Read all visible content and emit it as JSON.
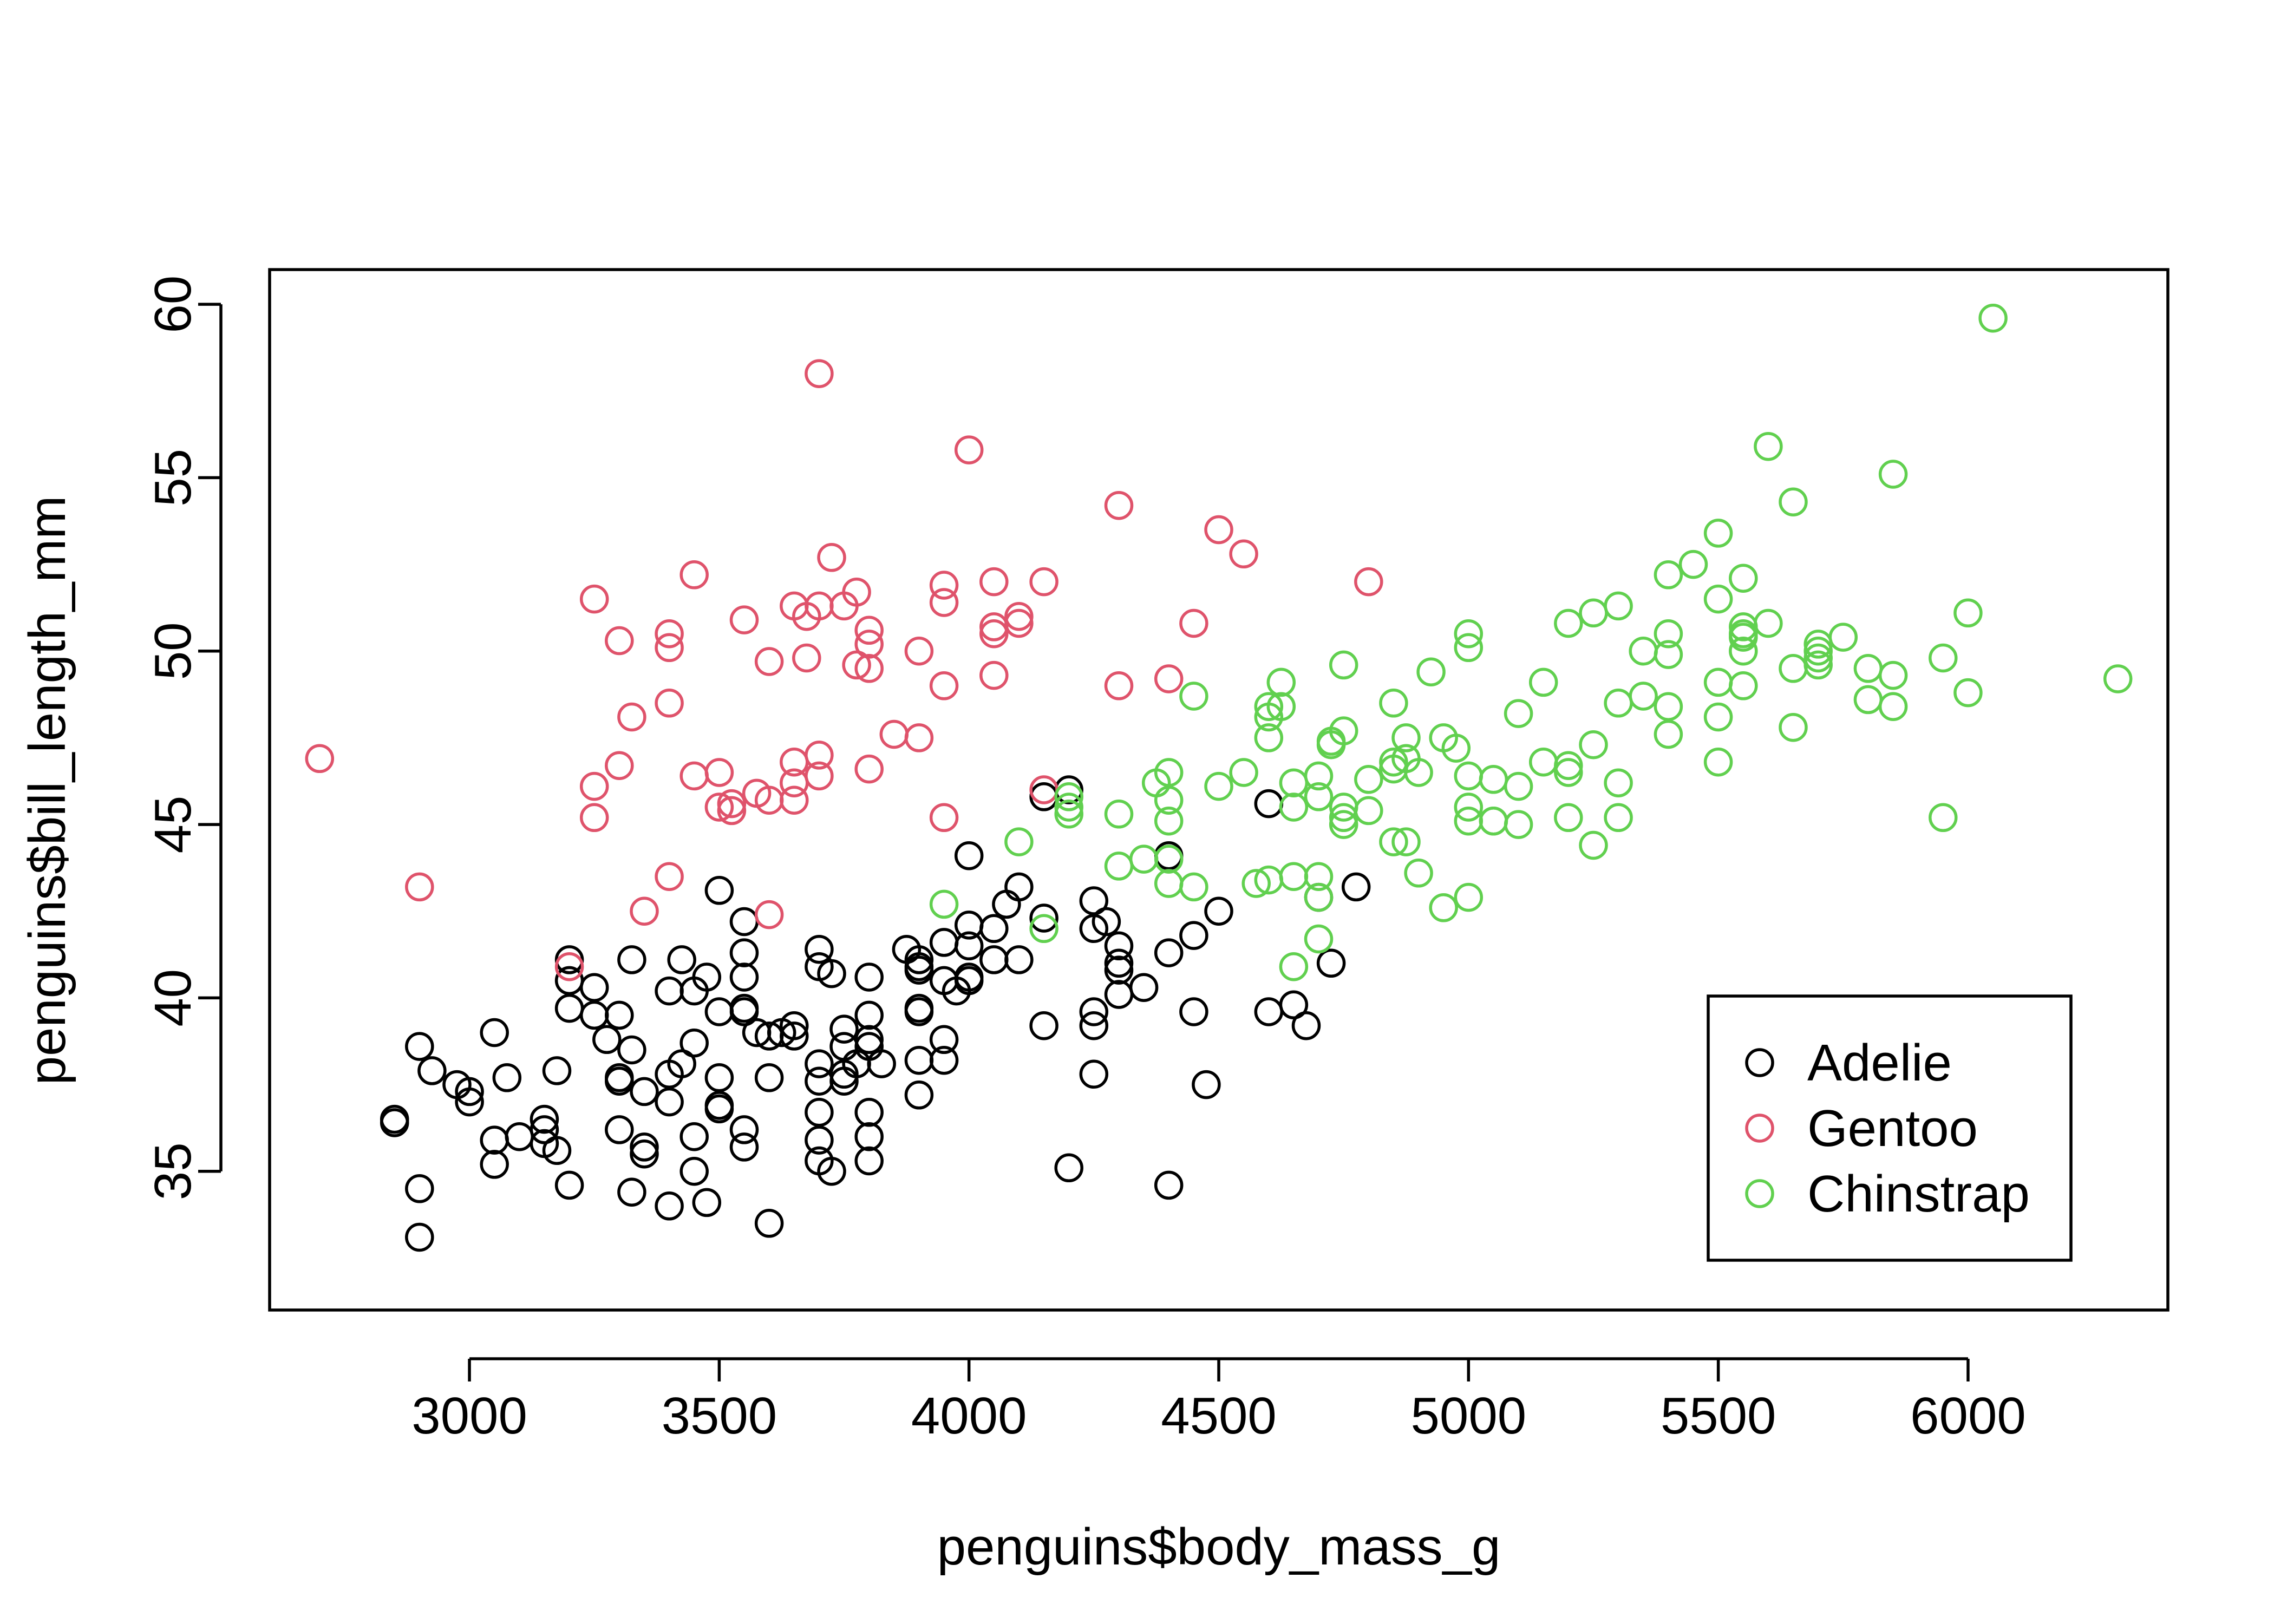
{
  "chart_data": {
    "type": "scatter",
    "title": "",
    "xlabel": "penguins$body_mass_g",
    "ylabel": "penguins$bill_length_mm",
    "xlim": [
      2600,
      6400
    ],
    "ylim": [
      31,
      61
    ],
    "xticks": [
      "3000",
      "3500",
      "4000",
      "4500",
      "5000",
      "5500",
      "6000"
    ],
    "yticks": [
      "35",
      "40",
      "45",
      "50",
      "55",
      "60"
    ],
    "grid": false,
    "legend_position": "bottom-right",
    "legend": [
      "Adelie",
      "Gentoo",
      "Chinstrap"
    ],
    "colors": {
      "Adelie": "#000000",
      "Gentoo": "#DF536B",
      "Chinstrap": "#61D04F"
    },
    "marker": "open-circle",
    "series": [
      {
        "name": "Adelie",
        "color": "#000000",
        "x": [
          2850,
          2850,
          2900,
          2900,
          2900,
          2925,
          2975,
          3000,
          3000,
          3050,
          3050,
          3050,
          3075,
          3100,
          3150,
          3150,
          3150,
          3175,
          3175,
          3200,
          3200,
          3200,
          3200,
          3250,
          3250,
          3275,
          3300,
          3300,
          3300,
          3300,
          3325,
          3325,
          3325,
          3350,
          3350,
          3350,
          3400,
          3400,
          3400,
          3400,
          3425,
          3425,
          3450,
          3450,
          3450,
          3450,
          3475,
          3475,
          3500,
          3500,
          3500,
          3500,
          3500,
          3550,
          3550,
          3550,
          3550,
          3550,
          3550,
          3550,
          3575,
          3600,
          3600,
          3600,
          3625,
          3650,
          3650,
          3700,
          3700,
          3700,
          3700,
          3700,
          3700,
          3700,
          3725,
          3725,
          3750,
          3750,
          3750,
          3750,
          3775,
          3800,
          3800,
          3800,
          3800,
          3800,
          3800,
          3800,
          3825,
          3875,
          3900,
          3900,
          3900,
          3900,
          3900,
          3900,
          3900,
          3950,
          3950,
          3950,
          3950,
          3975,
          4000,
          4000,
          4000,
          4000,
          4000,
          4050,
          4050,
          4075,
          4100,
          4100,
          4150,
          4150,
          4150,
          4200,
          4200,
          4250,
          4250,
          4250,
          4250,
          4250,
          4275,
          4300,
          4300,
          4300,
          4300,
          4350,
          4400,
          4400,
          4400,
          4450,
          4450,
          4475,
          4500,
          4600,
          4600,
          4650,
          4675,
          4700,
          4725,
          4775
        ],
        "y": [
          36.5,
          36.4,
          38.6,
          34.5,
          33.1,
          37.9,
          37.5,
          37.3,
          37.0,
          39.0,
          35.9,
          35.2,
          37.7,
          36.0,
          36.5,
          36.2,
          35.8,
          37.9,
          35.6,
          41.1,
          40.5,
          39.7,
          34.6,
          40.3,
          39.5,
          38.8,
          39.5,
          37.7,
          37.6,
          36.2,
          41.1,
          38.5,
          34.4,
          37.3,
          35.7,
          35.5,
          40.2,
          37.8,
          37.0,
          34.0,
          41.1,
          38.1,
          40.2,
          38.7,
          36.0,
          35.0,
          40.6,
          34.1,
          43.1,
          39.6,
          37.7,
          36.9,
          36.8,
          42.2,
          41.3,
          40.6,
          39.7,
          39.6,
          36.2,
          35.7,
          39.0,
          38.9,
          37.7,
          33.5,
          39.0,
          39.2,
          38.9,
          41.4,
          40.9,
          38.1,
          37.6,
          36.7,
          35.9,
          35.3,
          40.7,
          35.0,
          39.1,
          38.6,
          37.8,
          37.6,
          38.1,
          40.6,
          39.5,
          38.8,
          38.6,
          36.7,
          36.0,
          35.3,
          38.1,
          41.4,
          41.1,
          40.9,
          40.8,
          39.7,
          39.6,
          38.2,
          37.2,
          41.6,
          40.5,
          38.8,
          38.2,
          40.2,
          44.1,
          42.1,
          41.5,
          40.5,
          40.6,
          42.0,
          41.1,
          42.7,
          43.2,
          41.1,
          45.8,
          42.3,
          39.2,
          46.0,
          35.1,
          42.8,
          42.0,
          39.6,
          39.2,
          37.8,
          42.2,
          41.5,
          41.0,
          40.8,
          40.1,
          40.3,
          44.1,
          41.3,
          34.6,
          41.8,
          39.6,
          37.5,
          42.5,
          45.6,
          39.6,
          39.8,
          39.2,
          42.9,
          41.0,
          43.2
        ]
      },
      {
        "name": "Gentoo",
        "color": "#DF536B",
        "x": [
          2700,
          2900,
          3200,
          3250,
          3250,
          3250,
          3300,
          3300,
          3325,
          3350,
          3400,
          3400,
          3400,
          3400,
          3450,
          3450,
          3500,
          3500,
          3525,
          3525,
          3550,
          3575,
          3600,
          3600,
          3600,
          3650,
          3650,
          3650,
          3650,
          3675,
          3675,
          3700,
          3700,
          3700,
          3700,
          3725,
          3750,
          3775,
          3775,
          3800,
          3800,
          3800,
          3800,
          3850,
          3900,
          3900,
          3950,
          3950,
          3950,
          3950,
          4000,
          4050,
          4050,
          4050,
          4050,
          4100,
          4100,
          4150,
          4150,
          4300,
          4300,
          4400,
          4450,
          4500,
          4550,
          4800
        ],
        "y": [
          46.9,
          43.2,
          40.9,
          51.5,
          46.1,
          45.2,
          50.3,
          46.7,
          48.1,
          42.5,
          50.5,
          50.1,
          48.5,
          43.5,
          52.2,
          46.4,
          46.5,
          45.5,
          45.6,
          45.4,
          50.9,
          45.9,
          49.7,
          45.7,
          42.4,
          51.3,
          46.8,
          46.2,
          45.7,
          51.0,
          49.8,
          58.0,
          51.3,
          47.0,
          46.4,
          52.7,
          51.3,
          51.7,
          49.6,
          50.6,
          50.2,
          49.5,
          46.6,
          47.6,
          50.0,
          47.5,
          51.9,
          51.4,
          49.0,
          45.2,
          55.8,
          52.0,
          50.7,
          50.5,
          49.3,
          51.0,
          50.8,
          52.0,
          46.0,
          54.2,
          49.0,
          49.2,
          50.8,
          53.5,
          52.8,
          52.0
        ]
      },
      {
        "name": "Chinstrap",
        "color": "#61D04F",
        "x": [
          3950,
          4100,
          4150,
          4200,
          4200,
          4200,
          4300,
          4300,
          4350,
          4375,
          4400,
          4400,
          4400,
          4400,
          4400,
          4450,
          4450,
          4500,
          4550,
          4575,
          4600,
          4600,
          4600,
          4600,
          4625,
          4625,
          4650,
          4650,
          4650,
          4650,
          4700,
          4700,
          4700,
          4700,
          4700,
          4725,
          4725,
          4750,
          4750,
          4750,
          4750,
          4750,
          4800,
          4800,
          4850,
          4850,
          4850,
          4850,
          4875,
          4875,
          4875,
          4900,
          4900,
          4925,
          4950,
          4950,
          4975,
          5000,
          5000,
          5000,
          5000,
          5000,
          5000,
          5050,
          5050,
          5050,
          5100,
          5100,
          5100,
          5150,
          5150,
          5200,
          5200,
          5200,
          5200,
          5250,
          5250,
          5250,
          5300,
          5300,
          5300,
          5300,
          5350,
          5350,
          5400,
          5400,
          5400,
          5400,
          5400,
          5450,
          5500,
          5500,
          5500,
          5500,
          5500,
          5550,
          5550,
          5550,
          5550,
          5550,
          5550,
          5600,
          5600,
          5650,
          5650,
          5650,
          5700,
          5700,
          5700,
          5700,
          5750,
          5800,
          5800,
          5850,
          5850,
          5850,
          5950,
          5950,
          6000,
          6000,
          6050,
          6300
        ],
        "y": [
          42.7,
          44.5,
          42.0,
          45.8,
          45.5,
          45.3,
          45.3,
          43.8,
          44.0,
          46.2,
          46.5,
          45.7,
          45.1,
          44.0,
          43.3,
          48.7,
          43.2,
          46.1,
          46.5,
          43.3,
          48.4,
          48.1,
          47.5,
          43.4,
          49.1,
          48.4,
          46.2,
          45.5,
          43.5,
          40.9,
          46.4,
          45.8,
          43.5,
          42.9,
          41.7,
          47.4,
          47.3,
          49.6,
          47.7,
          45.5,
          45.2,
          45.0,
          46.3,
          45.4,
          48.5,
          46.8,
          46.6,
          44.5,
          47.5,
          46.9,
          44.5,
          46.5,
          43.6,
          49.4,
          47.5,
          42.6,
          47.2,
          50.5,
          50.1,
          46.4,
          45.5,
          45.1,
          42.9,
          46.3,
          45.1,
          45.1,
          48.2,
          46.1,
          45.0,
          49.1,
          46.8,
          50.8,
          46.7,
          46.5,
          45.2,
          51.1,
          47.3,
          44.4,
          51.3,
          48.5,
          46.2,
          45.2,
          50.0,
          48.7,
          52.2,
          50.5,
          49.9,
          48.4,
          47.6,
          52.5,
          53.4,
          51.5,
          49.1,
          48.1,
          46.8,
          52.1,
          50.7,
          50.4,
          50.0,
          49.0,
          50.5,
          55.9,
          50.8,
          54.3,
          49.5,
          47.8,
          50.2,
          50.0,
          49.8,
          49.6,
          50.4,
          49.5,
          48.6,
          55.1,
          49.3,
          48.4,
          49.8,
          45.2,
          51.1,
          48.8,
          59.6,
          49.2
        ]
      }
    ]
  }
}
